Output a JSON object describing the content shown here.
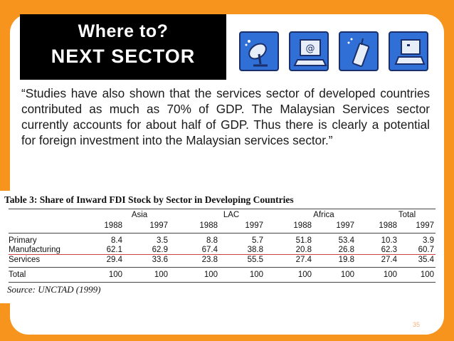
{
  "slide": {
    "title_line1": "Where to?",
    "title_line2": "NEXT SECTOR",
    "quote": "“Studies have also shown that the services sector of developed countries contributed as much as 70% of GDP. The Malaysian Services sector currently accounts for about half of GDP. Thus there is clearly a potential for foreign investment into the Malaysian services sector.”",
    "page_number": "35",
    "colors": {
      "background": "#f7941d",
      "title_box": "#000000",
      "icon_fill": "#2f6fd6"
    }
  },
  "icons": [
    "satellite-dish-icon",
    "computer-email-icon",
    "mobile-phone-icon",
    "laptop-icon"
  ],
  "table": {
    "title": "Table 3: Share of Inward FDI Stock by Sector in Developing Countries",
    "regions": [
      "Asia",
      "LAC",
      "Africa",
      "Total"
    ],
    "years": [
      "1988",
      "1997",
      "1988",
      "1997",
      "1988",
      "1997",
      "1988",
      "1997"
    ],
    "rows": [
      {
        "label": "Primary",
        "values": [
          "8.4",
          "3.5",
          "8.8",
          "5.7",
          "51.8",
          "53.4",
          "10.3",
          "3.9"
        ]
      },
      {
        "label": "Manufacturing",
        "values": [
          "62.1",
          "62.9",
          "67.4",
          "38.8",
          "20.8",
          "26.8",
          "62.3",
          "60.7"
        ]
      },
      {
        "label": "Services",
        "values": [
          "29.4",
          "33.6",
          "23.8",
          "55.5",
          "27.4",
          "19.8",
          "27.4",
          "35.4"
        ]
      },
      {
        "label": "Total",
        "values": [
          "100",
          "100",
          "100",
          "100",
          "100",
          "100",
          "100",
          "100"
        ]
      }
    ],
    "source": "Source: UNCTAD (1999)"
  }
}
